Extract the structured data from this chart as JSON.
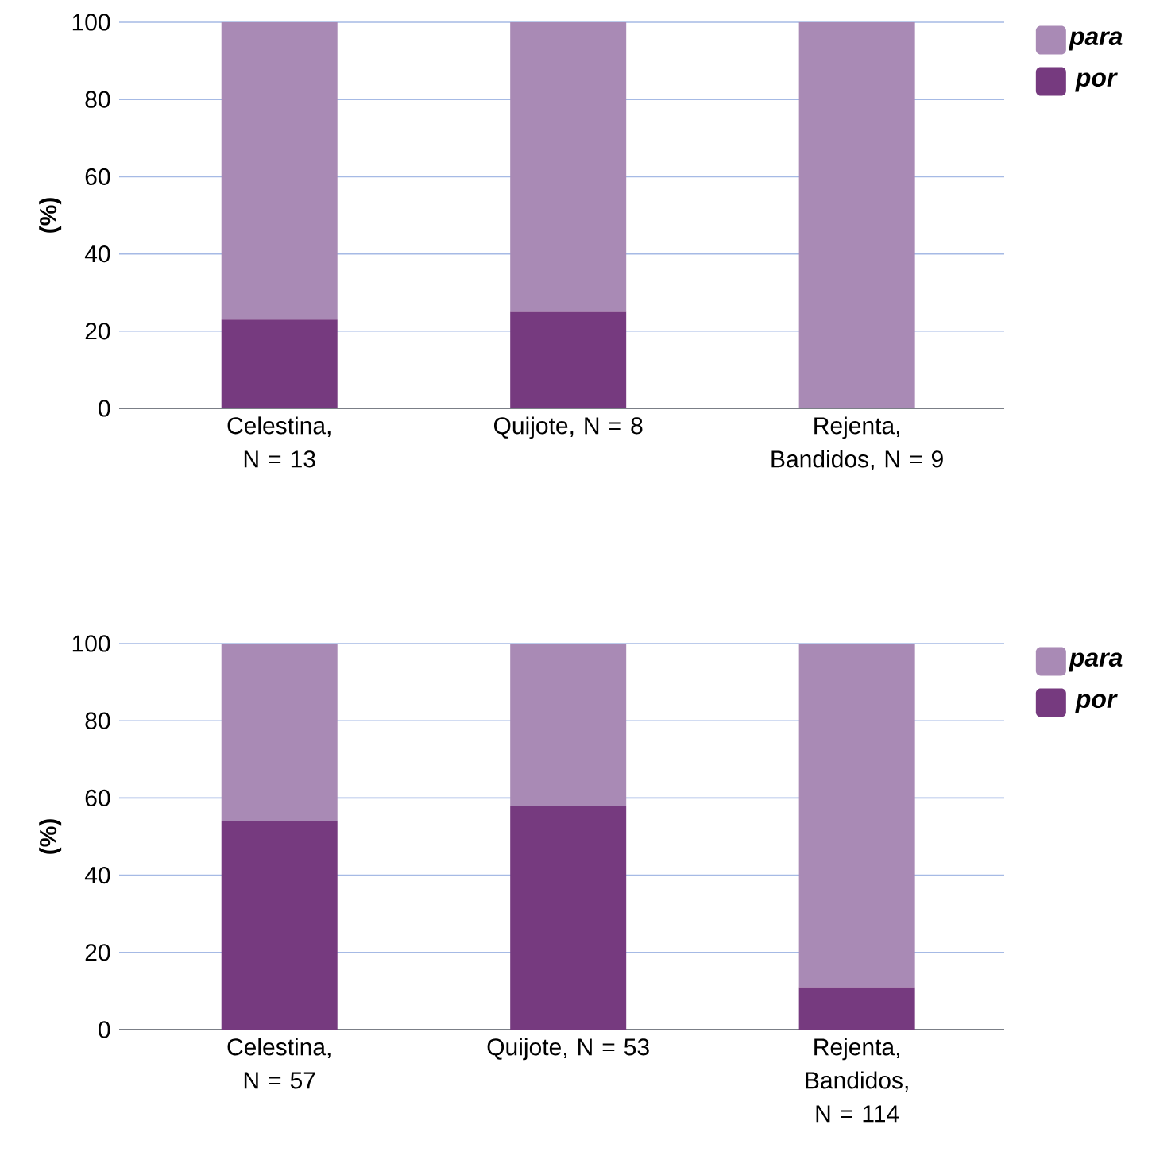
{
  "chart_data": [
    {
      "type": "bar",
      "stacked": true,
      "ylabel": "(%)",
      "categories": [
        "Celestina, N = 13",
        "Quijote, N = 8",
        "Rejenta, Bandidos, N = 9"
      ],
      "series": [
        {
          "name": "por",
          "color": "#763a7f",
          "values": [
            23,
            25,
            0
          ]
        },
        {
          "name": "para",
          "color": "#a98ab5",
          "values": [
            77,
            75,
            100
          ]
        }
      ],
      "ylim": [
        0,
        100
      ],
      "yticks": [
        0,
        20,
        40,
        60,
        80,
        100
      ],
      "grid": "y",
      "legend": "top right"
    },
    {
      "type": "bar",
      "stacked": true,
      "ylabel": "(%)",
      "categories": [
        "Celestina, N = 57",
        "Quijote, N = 53",
        "Rejenta, Bandidos, N = 114"
      ],
      "series": [
        {
          "name": "por",
          "color": "#763a7f",
          "values": [
            54,
            58,
            11
          ]
        },
        {
          "name": "para",
          "color": "#a98ab5",
          "values": [
            46,
            42,
            89
          ]
        }
      ],
      "ylim": [
        0,
        100
      ],
      "yticks": [
        0,
        20,
        40,
        60,
        80,
        100
      ],
      "grid": "y",
      "legend": "top right"
    }
  ]
}
